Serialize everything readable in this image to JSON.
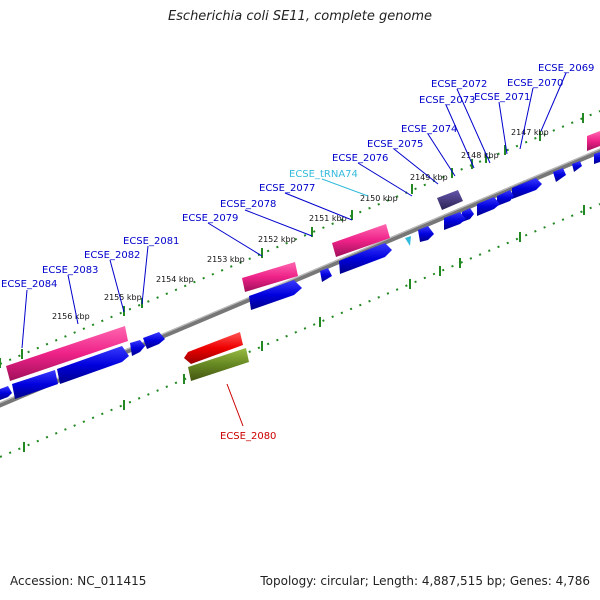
{
  "title": "Escherichia coli SE11, complete genome",
  "footer": {
    "accession": "Accession: NC_011415",
    "topology": "Topology: circular; Length: 4,887,515 bp; Genes: 4,786"
  },
  "ticks": [
    {
      "label": "2147 kbp"
    },
    {
      "label": "2148 kbp"
    },
    {
      "label": "2149 kbp"
    },
    {
      "label": "2150 kbp"
    },
    {
      "label": "2151 kbp"
    },
    {
      "label": "2152 kbp"
    },
    {
      "label": "2153 kbp"
    },
    {
      "label": "2154 kbp"
    },
    {
      "label": "2155 kbp"
    },
    {
      "label": "2156 kbp"
    }
  ],
  "gene_labels": [
    {
      "name": "ECSE_2069",
      "color": "#0000cc"
    },
    {
      "name": "ECSE_2070",
      "color": "#0000cc"
    },
    {
      "name": "ECSE_2071",
      "color": "#0000cc"
    },
    {
      "name": "ECSE_2072",
      "color": "#0000cc"
    },
    {
      "name": "ECSE_2073",
      "color": "#0000cc"
    },
    {
      "name": "ECSE_2074",
      "color": "#0000cc"
    },
    {
      "name": "ECSE_2075",
      "color": "#0000cc"
    },
    {
      "name": "ECSE_2076",
      "color": "#0000cc"
    },
    {
      "name": "ECSE_tRNA74",
      "color": "#33bbdd"
    },
    {
      "name": "ECSE_2077",
      "color": "#0000cc"
    },
    {
      "name": "ECSE_2078",
      "color": "#0000cc"
    },
    {
      "name": "ECSE_2079",
      "color": "#0000cc"
    },
    {
      "name": "ECSE_2081",
      "color": "#0000cc"
    },
    {
      "name": "ECSE_2082",
      "color": "#0000cc"
    },
    {
      "name": "ECSE_2083",
      "color": "#0000cc"
    },
    {
      "name": "ECSE_2084",
      "color": "#0000cc"
    },
    {
      "name": "ECSE_2080",
      "color": "#cc0000"
    }
  ],
  "colors": {
    "cds": "#0000ee",
    "gene": "#ee2288",
    "gene_reverse": "#ee0000",
    "cds_reverse": "#668822",
    "trna": "#33bbdd",
    "misc": "#443377",
    "backbone": "#888888",
    "tick": "#228822"
  }
}
